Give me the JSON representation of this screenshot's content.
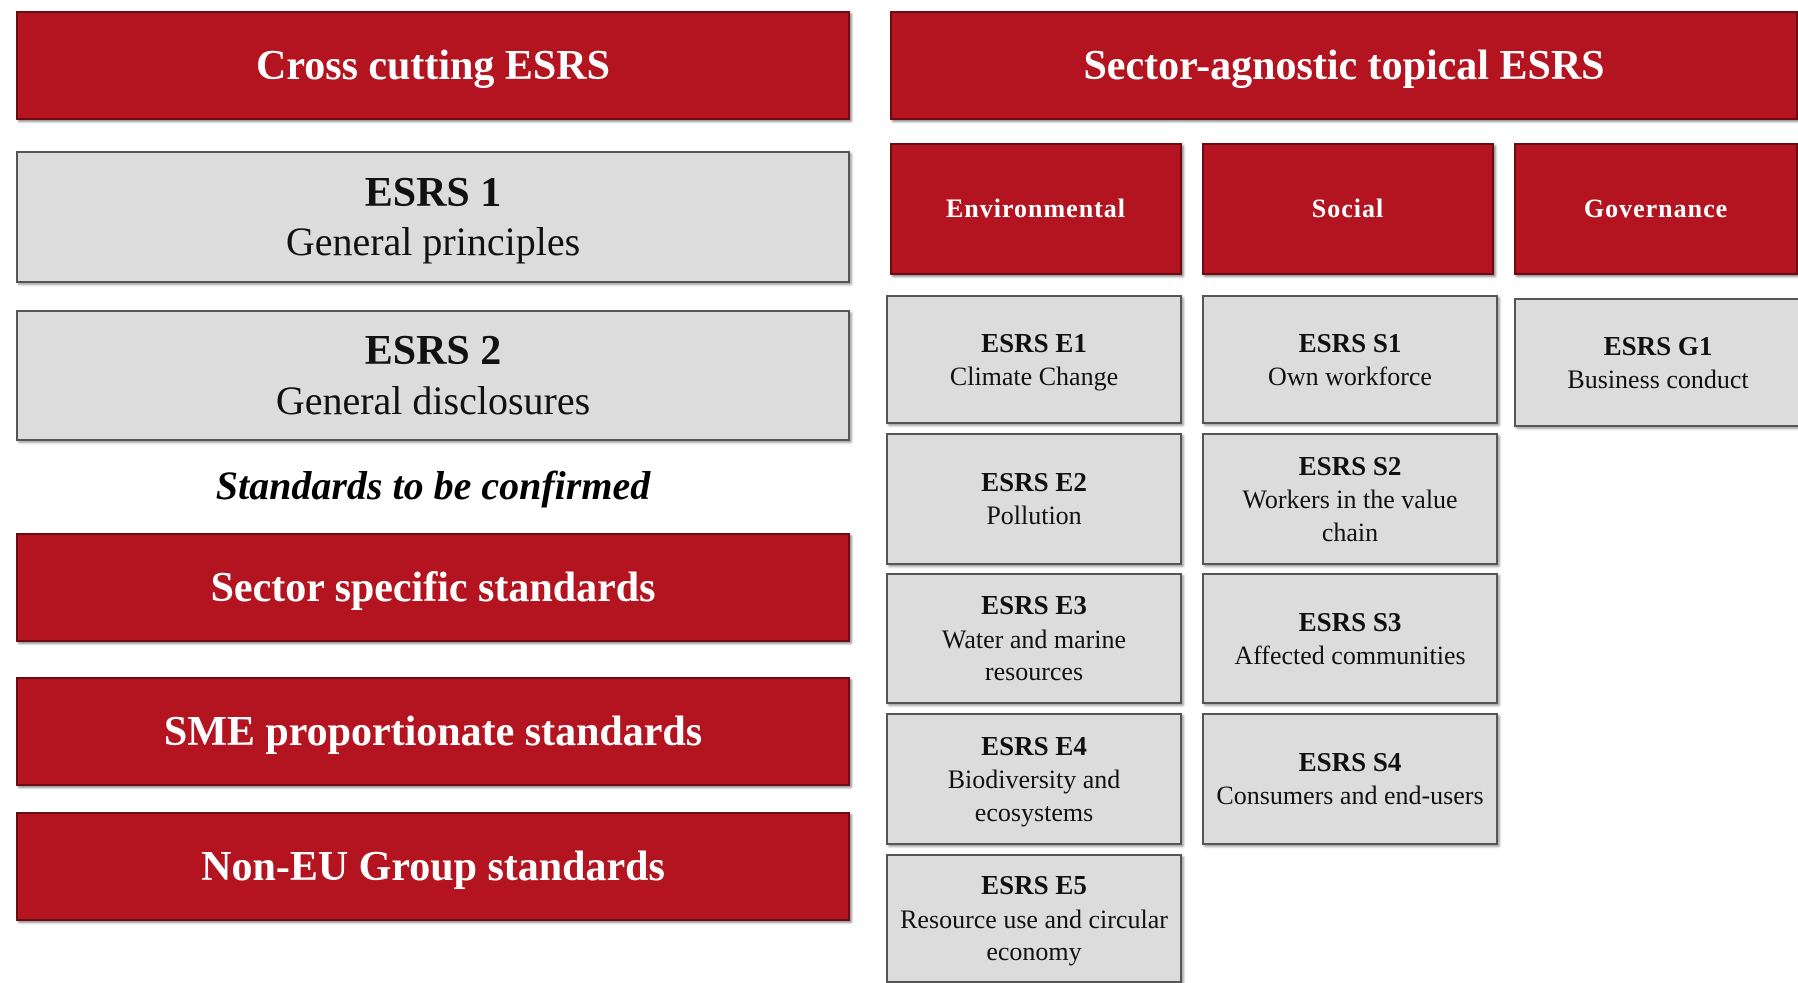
{
  "left": {
    "header": "Cross cutting ESRS",
    "boxes": [
      {
        "code": "ESRS 1",
        "label": "General principles"
      },
      {
        "code": "ESRS 2",
        "label": "General disclosures"
      }
    ],
    "note": "Standards to be confirmed",
    "pending": [
      "Sector specific standards",
      "SME proportionate standards",
      "Non-EU Group standards"
    ]
  },
  "right": {
    "header": "Sector-agnostic topical ESRS",
    "columns": [
      {
        "title": "Environmental",
        "items": [
          {
            "code": "ESRS E1",
            "label": "Climate Change"
          },
          {
            "code": "ESRS E2",
            "label": "Pollution"
          },
          {
            "code": "ESRS E3",
            "label": "Water and marine resources"
          },
          {
            "code": "ESRS E4",
            "label": "Biodiversity and ecosystems"
          },
          {
            "code": "ESRS E5",
            "label": "Resource use and circular economy"
          }
        ]
      },
      {
        "title": "Social",
        "items": [
          {
            "code": "ESRS S1",
            "label": "Own workforce"
          },
          {
            "code": "ESRS S2",
            "label": "Workers in the value chain"
          },
          {
            "code": "ESRS S3",
            "label": "Affected communities"
          },
          {
            "code": "ESRS S4",
            "label": "Consumers and end-users"
          }
        ]
      },
      {
        "title": "Governance",
        "items": [
          {
            "code": "ESRS G1",
            "label": "Business conduct"
          }
        ]
      }
    ]
  }
}
